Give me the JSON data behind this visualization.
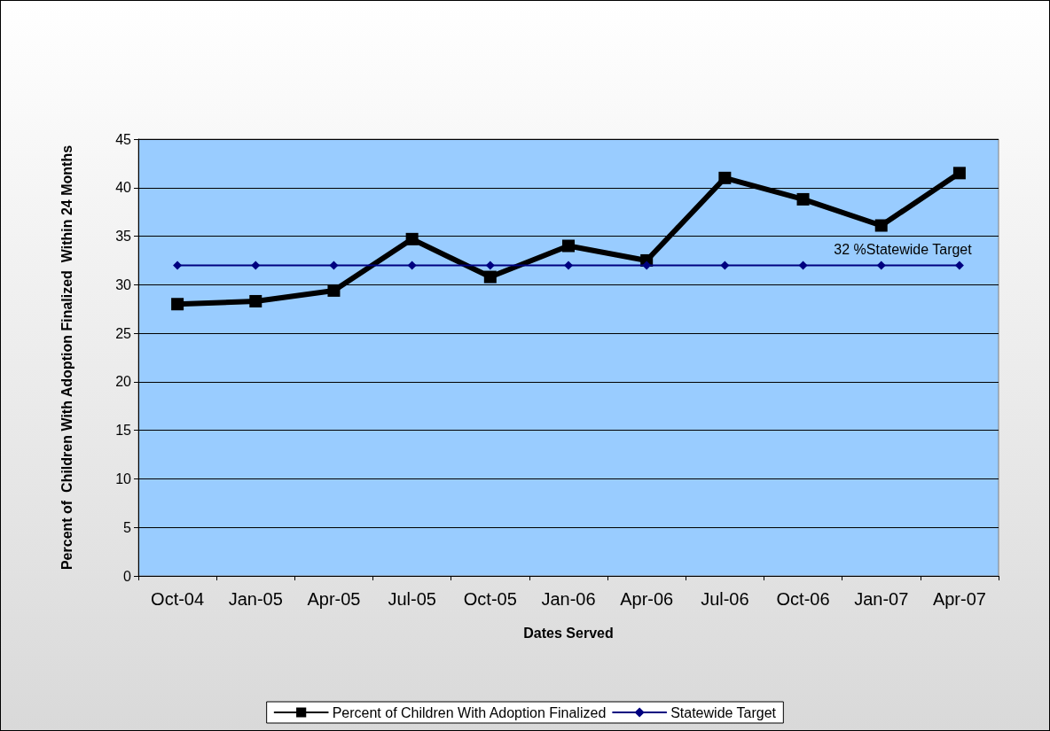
{
  "chart_data": {
    "type": "line",
    "xlabel": "Dates Served",
    "ylabel": "Percent of  Children With Adoption Finalized  Within 24 Months",
    "categories": [
      "Oct-04",
      "Jan-05",
      "Apr-05",
      "Jul-05",
      "Oct-05",
      "Jan-06",
      "Apr-06",
      "Jul-06",
      "Oct-06",
      "Jan-07",
      "Apr-07"
    ],
    "series": [
      {
        "name": "Percent of Children With Adoption Finalized",
        "color": "#000000",
        "marker": "square",
        "values": [
          28.0,
          28.3,
          29.4,
          34.7,
          30.8,
          34.0,
          32.5,
          41.0,
          38.8,
          36.1,
          41.5
        ]
      },
      {
        "name": "Statewide Target",
        "color": "#000080",
        "marker": "diamond",
        "values": [
          32,
          32,
          32,
          32,
          32,
          32,
          32,
          32,
          32,
          32,
          32
        ]
      }
    ],
    "ylim": [
      0,
      45
    ],
    "yticks": [
      0,
      5,
      10,
      15,
      20,
      25,
      30,
      35,
      40,
      45
    ],
    "grid": "y",
    "legend": "bottom",
    "line_style": "solid",
    "annotations": [
      "32 %Statewide Target"
    ]
  }
}
